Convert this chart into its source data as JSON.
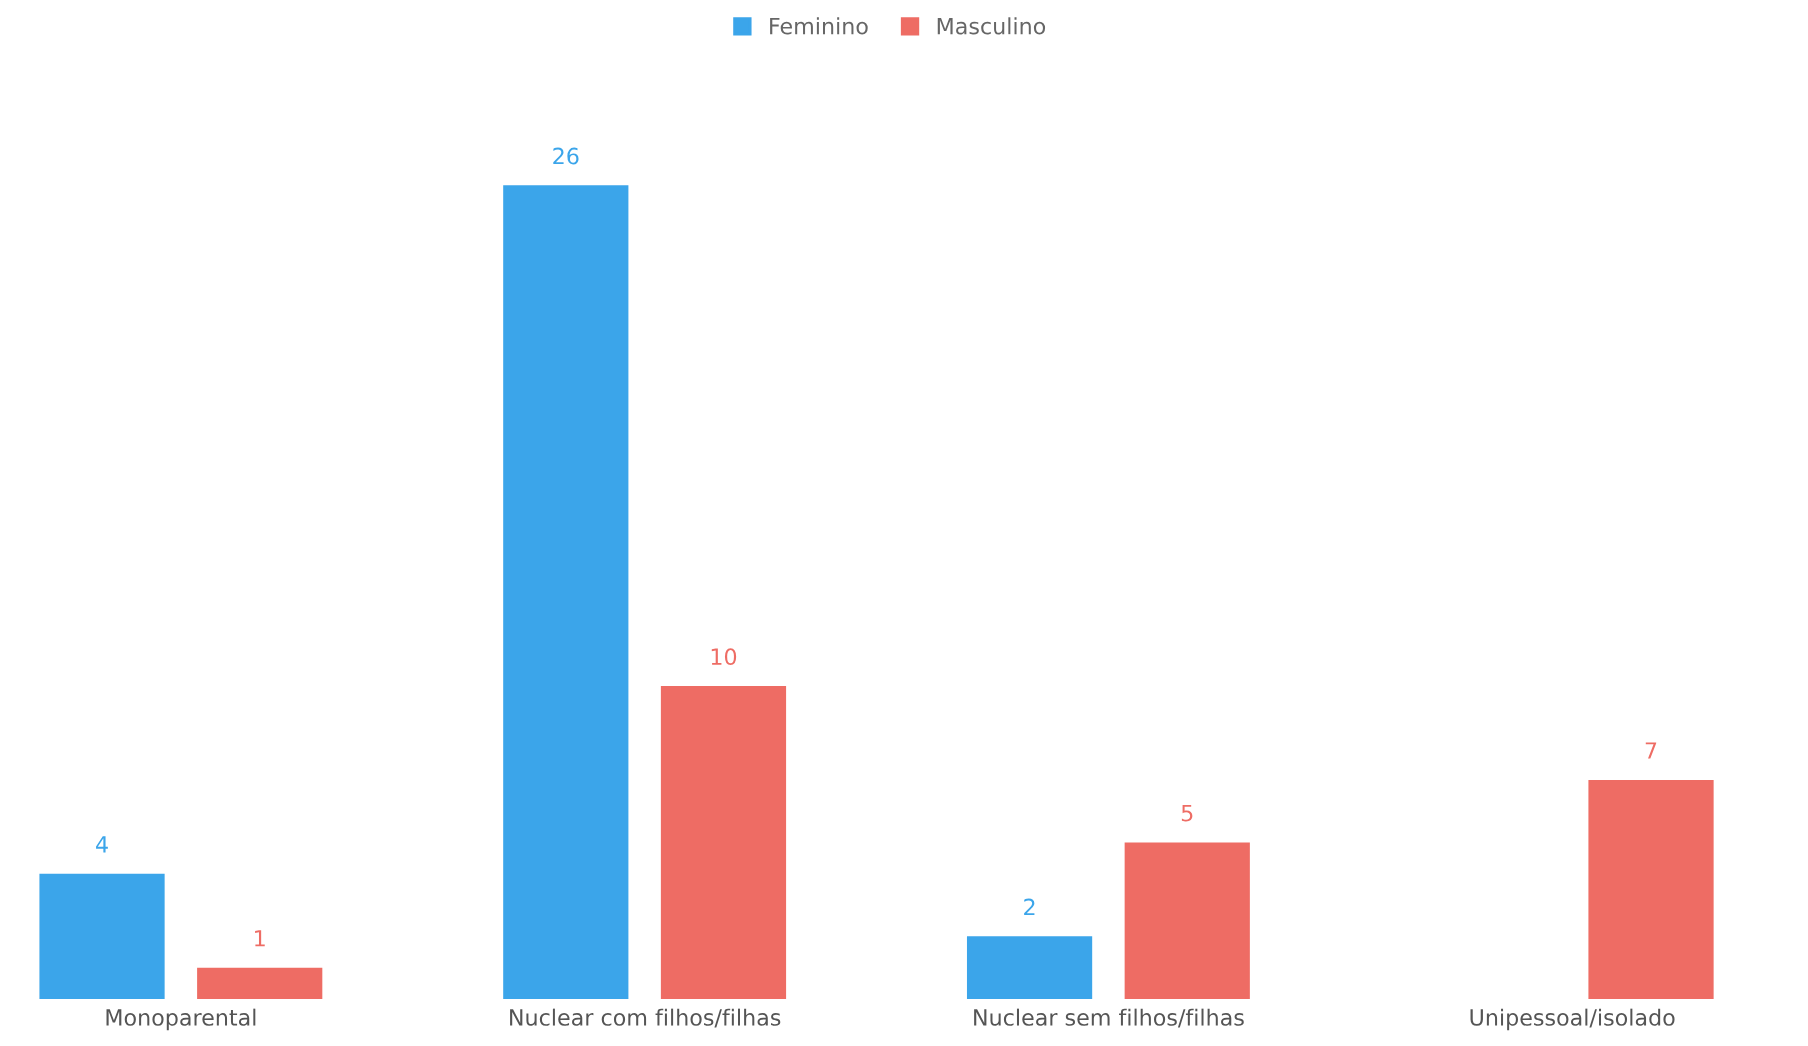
{
  "chart_data": {
    "type": "bar",
    "categories": [
      "Monoparental",
      "Nuclear com filhos/filhas",
      "Nuclear sem filhos/filhas",
      "Unipessoal/isolado"
    ],
    "series": [
      {
        "name": "Feminino",
        "color": "#3ba5ea",
        "values": [
          4,
          26,
          2,
          null
        ]
      },
      {
        "name": "Masculino",
        "color": "#ee6c64",
        "values": [
          1,
          10,
          5,
          7
        ]
      }
    ],
    "data_labels": true,
    "legend": "top",
    "grid": false
  }
}
